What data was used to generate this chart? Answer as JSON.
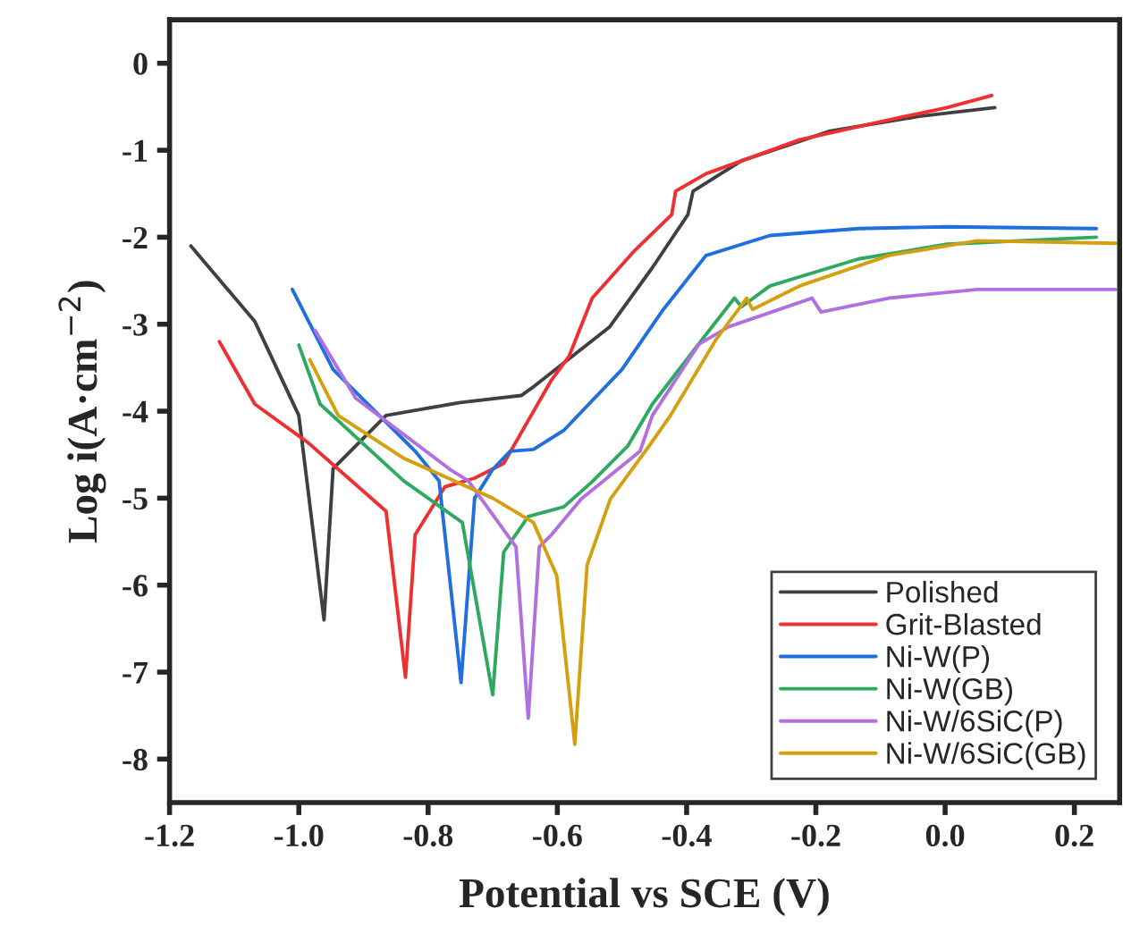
{
  "chart_data": {
    "type": "line",
    "xlabel": "Potential vs SCE (V)",
    "ylabel": "Log i(A·cm$^{−2}$)",
    "xlim": [
      -1.2,
      0.27
    ],
    "xticks": [
      -1.2,
      {
        "value": -1,
        "label": "-1.0"
      },
      -0.8,
      -0.6,
      -0.4,
      -0.2,
      {
        "value": 0,
        "label": "0.0"
      },
      0.2
    ],
    "ylim": [
      -8.5,
      0.5
    ],
    "yticks": [
      -8,
      -7,
      -6,
      -5,
      -4,
      -3,
      -2,
      -1,
      0
    ],
    "legend": "bottom right",
    "marker": "none",
    "line_style": "solid",
    "grid": false,
    "series": [
      {
        "name": "Polished",
        "color": "#404040",
        "x": [
          -1.167,
          -1.068,
          -1.0,
          -0.961,
          -0.947,
          -0.865,
          -0.82,
          -0.75,
          -0.656,
          -0.637,
          -0.519,
          -0.453,
          -0.398,
          -0.39,
          -0.315,
          -0.178,
          -0.04,
          0.077
        ],
        "values": [
          -2.1,
          -2.97,
          -4.05,
          -6.4,
          -4.66,
          -4.05,
          -3.99,
          -3.9,
          -3.82,
          -3.72,
          -3.03,
          -2.35,
          -1.74,
          -1.47,
          -1.12,
          -0.78,
          -0.61,
          -0.51
        ]
      },
      {
        "name": "Grit-Blasted",
        "color": "#f03030",
        "x": [
          -1.123,
          -1.068,
          -0.986,
          -0.865,
          -0.835,
          -0.82,
          -0.774,
          -0.728,
          -0.683,
          -0.609,
          -0.582,
          -0.546,
          -0.48,
          -0.423,
          -0.417,
          -0.37,
          -0.225,
          -0.087,
          0.003,
          0.072
        ],
        "values": [
          -3.2,
          -3.92,
          -4.36,
          -5.15,
          -7.06,
          -5.42,
          -4.87,
          -4.77,
          -4.6,
          -3.64,
          -3.37,
          -2.7,
          -2.15,
          -1.74,
          -1.47,
          -1.27,
          -0.88,
          -0.65,
          -0.51,
          -0.37
        ]
      },
      {
        "name": "Ni-W(P)",
        "color": "#1f6fe0",
        "x": [
          -1.01,
          -0.947,
          -0.82,
          -0.783,
          -0.749,
          -0.728,
          -0.7,
          -0.673,
          -0.637,
          -0.59,
          -0.5,
          -0.436,
          -0.37,
          -0.271,
          -0.134,
          0.003,
          0.234
        ],
        "values": [
          -2.6,
          -3.52,
          -4.46,
          -4.8,
          -7.12,
          -5.0,
          -4.67,
          -4.46,
          -4.44,
          -4.22,
          -3.52,
          -2.83,
          -2.21,
          -1.98,
          -1.9,
          -1.88,
          -1.9
        ]
      },
      {
        "name": "Ni-W(GB)",
        "color": "#2eaa60",
        "x": [
          -1.0,
          -0.967,
          -0.838,
          -0.747,
          -0.7,
          -0.683,
          -0.645,
          -0.59,
          -0.546,
          -0.491,
          -0.453,
          -0.39,
          -0.326,
          -0.315,
          -0.271,
          -0.134,
          0.003,
          0.234
        ],
        "values": [
          -3.24,
          -3.92,
          -4.8,
          -5.28,
          -7.26,
          -5.62,
          -5.21,
          -5.1,
          -4.81,
          -4.4,
          -3.92,
          -3.31,
          -2.7,
          -2.8,
          -2.56,
          -2.25,
          -2.08,
          -2.0
        ]
      },
      {
        "name": "Ni-W/6SiC(P)",
        "color": "#b070e0",
        "x": [
          -0.975,
          -0.912,
          -0.766,
          -0.738,
          -0.664,
          -0.645,
          -0.628,
          -0.609,
          -0.563,
          -0.472,
          -0.453,
          -0.381,
          -0.335,
          -0.206,
          -0.192,
          -0.087,
          0.05,
          0.264
        ],
        "values": [
          -3.07,
          -3.85,
          -4.67,
          -4.8,
          -5.56,
          -7.53,
          -5.56,
          -5.42,
          -5.01,
          -4.46,
          -4.05,
          -3.23,
          -3.03,
          -2.7,
          -2.86,
          -2.7,
          -2.6,
          -2.6
        ]
      },
      {
        "name": "Ni-W/6SiC(GB)",
        "color": "#d4a010",
        "x": [
          -0.983,
          -0.939,
          -0.838,
          -0.7,
          -0.637,
          -0.601,
          -0.573,
          -0.554,
          -0.518,
          -0.458,
          -0.425,
          -0.354,
          -0.307,
          -0.298,
          -0.225,
          -0.087,
          0.05,
          0.264
        ],
        "values": [
          -3.41,
          -4.05,
          -4.54,
          -5.0,
          -5.28,
          -5.89,
          -7.83,
          -5.77,
          -5.01,
          -4.4,
          -4.05,
          -3.17,
          -2.7,
          -2.83,
          -2.56,
          -2.21,
          -2.04,
          -2.07
        ]
      }
    ]
  }
}
